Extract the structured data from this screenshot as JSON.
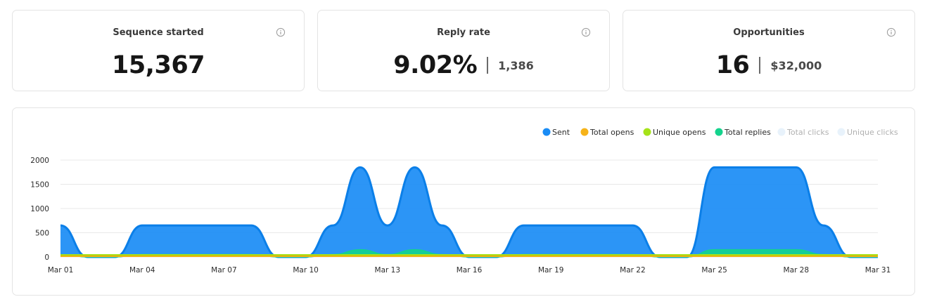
{
  "stats": [
    {
      "title": "Sequence started",
      "main": "15,367",
      "sub": ""
    },
    {
      "title": "Reply rate",
      "main": "9.02%",
      "sub": "1,386"
    },
    {
      "title": "Opportunities",
      "main": "16",
      "sub": "$32,000"
    }
  ],
  "colors": {
    "sent": "#1a8cf5",
    "total_opens": "#f6b319",
    "unique_opens": "#a6e319",
    "total_replies": "#14d38d",
    "total_clicks": "#e8f2fb",
    "unique_clicks": "#e8f2fb"
  },
  "chart_data": {
    "type": "area",
    "ylim": [
      0,
      2000
    ],
    "yticks": [
      0,
      500,
      1000,
      1500,
      2000
    ],
    "xticks": [
      "Mar 01",
      "Mar 04",
      "Mar 07",
      "Mar 10",
      "Mar 13",
      "Mar 16",
      "Mar 19",
      "Mar 22",
      "Mar 25",
      "Mar 28",
      "Mar 31"
    ],
    "x": [
      "Mar 01",
      "Mar 02",
      "Mar 03",
      "Mar 04",
      "Mar 05",
      "Mar 06",
      "Mar 07",
      "Mar 08",
      "Mar 09",
      "Mar 10",
      "Mar 11",
      "Mar 12",
      "Mar 13",
      "Mar 14",
      "Mar 15",
      "Mar 16",
      "Mar 17",
      "Mar 18",
      "Mar 19",
      "Mar 20",
      "Mar 21",
      "Mar 22",
      "Mar 23",
      "Mar 24",
      "Mar 25",
      "Mar 26",
      "Mar 27",
      "Mar 28",
      "Mar 29",
      "Mar 30",
      "Mar 31"
    ],
    "legend": [
      "Sent",
      "Total opens",
      "Unique opens",
      "Total replies",
      "Total clicks",
      "Unique clicks"
    ],
    "legend_position": "top-right",
    "series": [
      {
        "name": "Sent",
        "values": [
          650,
          0,
          0,
          650,
          650,
          650,
          650,
          650,
          0,
          0,
          650,
          1850,
          650,
          1850,
          650,
          0,
          0,
          650,
          650,
          650,
          650,
          650,
          0,
          0,
          1850,
          1850,
          1850,
          1850,
          650,
          0,
          0
        ]
      },
      {
        "name": "Total replies",
        "values": [
          50,
          0,
          0,
          50,
          50,
          50,
          50,
          50,
          0,
          0,
          50,
          150,
          50,
          150,
          50,
          0,
          0,
          50,
          50,
          50,
          50,
          50,
          0,
          0,
          150,
          150,
          150,
          150,
          50,
          0,
          0
        ]
      },
      {
        "name": "Unique opens",
        "values": [
          25,
          25,
          25,
          25,
          25,
          25,
          25,
          25,
          25,
          25,
          25,
          25,
          25,
          25,
          25,
          25,
          25,
          25,
          25,
          25,
          25,
          25,
          25,
          25,
          25,
          25,
          25,
          25,
          25,
          25,
          25
        ]
      },
      {
        "name": "Total opens",
        "values": [
          25,
          25,
          25,
          25,
          25,
          25,
          25,
          25,
          25,
          25,
          25,
          25,
          25,
          25,
          25,
          25,
          25,
          25,
          25,
          25,
          25,
          25,
          25,
          25,
          25,
          25,
          25,
          25,
          25,
          25,
          25
        ]
      }
    ],
    "grid": true
  }
}
